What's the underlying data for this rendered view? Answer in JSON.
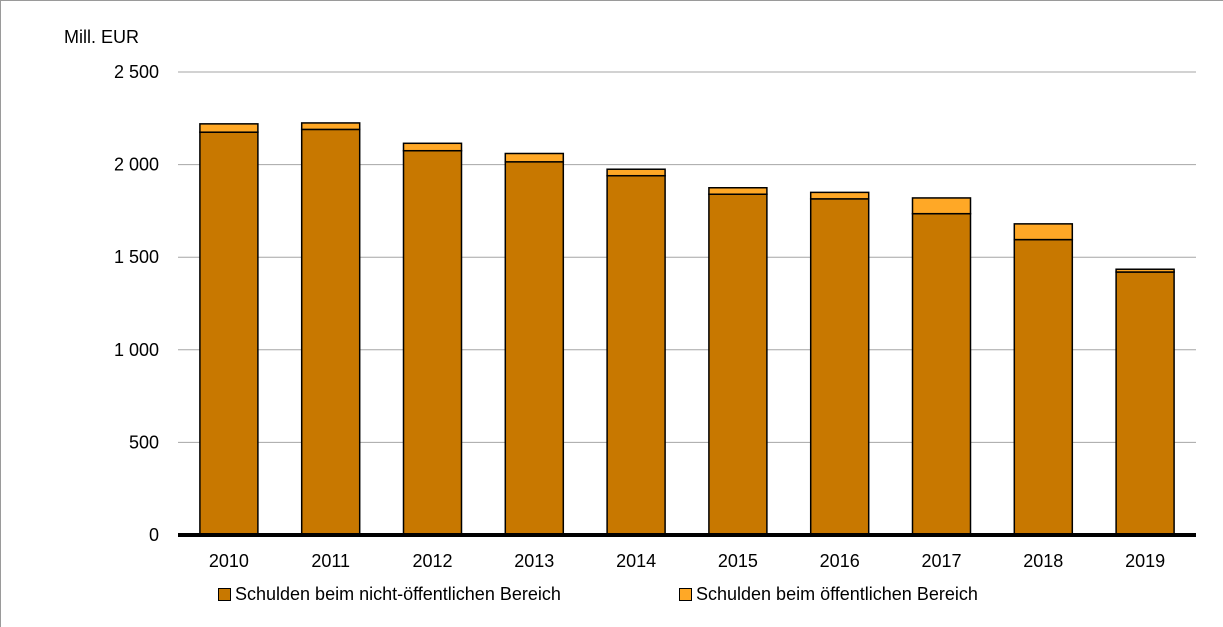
{
  "chart_data": {
    "type": "bar",
    "stacked": true,
    "unit_label": "Mill. EUR",
    "categories": [
      "2010",
      "2011",
      "2012",
      "2013",
      "2014",
      "2015",
      "2016",
      "2017",
      "2018",
      "2019"
    ],
    "series": [
      {
        "name": "Schulden beim nicht-öffentlichen Bereich",
        "color": "#c87800",
        "values": [
          2175,
          2190,
          2075,
          2015,
          1940,
          1840,
          1815,
          1735,
          1595,
          1420
        ]
      },
      {
        "name": "Schulden beim öffentlichen Bereich",
        "color": "#ffa826",
        "values": [
          45,
          35,
          40,
          45,
          35,
          35,
          35,
          85,
          85,
          15
        ]
      }
    ],
    "ylim": [
      0,
      2500
    ],
    "yticks": [
      0,
      500,
      1000,
      1500,
      2000,
      2500
    ],
    "ytick_labels": [
      "0",
      "500",
      "1 000",
      "1 500",
      "2 000",
      "2 500"
    ],
    "grid": true,
    "legend_position": "bottom"
  }
}
